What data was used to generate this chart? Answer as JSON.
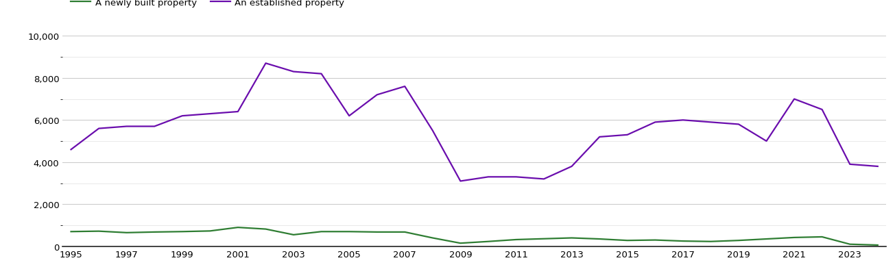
{
  "years": [
    1995,
    1996,
    1997,
    1998,
    1999,
    2000,
    2001,
    2002,
    2003,
    2004,
    2005,
    2006,
    2007,
    2008,
    2009,
    2010,
    2011,
    2012,
    2013,
    2014,
    2015,
    2016,
    2017,
    2018,
    2019,
    2020,
    2021,
    2022,
    2023,
    2024
  ],
  "new_homes": [
    700,
    720,
    650,
    680,
    700,
    730,
    900,
    820,
    550,
    700,
    700,
    680,
    680,
    400,
    150,
    230,
    320,
    360,
    400,
    350,
    280,
    300,
    250,
    230,
    280,
    350,
    420,
    450,
    100,
    60
  ],
  "established_homes": [
    4600,
    5600,
    5700,
    5700,
    6200,
    6300,
    6400,
    8700,
    8300,
    8200,
    6200,
    7200,
    7600,
    5500,
    3100,
    3300,
    3300,
    3200,
    3800,
    5200,
    5300,
    5900,
    6000,
    5900,
    5800,
    5000,
    7000,
    6500,
    3900,
    3800
  ],
  "new_homes_color": "#2e7d32",
  "established_homes_color": "#6a0dad",
  "legend_new": "A newly built property",
  "legend_established": "An established property",
  "ylim": [
    0,
    10000
  ],
  "yticks_major": [
    0,
    2000,
    4000,
    6000,
    8000,
    10000
  ],
  "yticks_minor": [
    1000,
    3000,
    5000,
    7000,
    9000
  ],
  "background_color": "#ffffff",
  "major_grid_color": "#cccccc",
  "minor_grid_color": "#e5e5e5",
  "linewidth": 1.6,
  "legend_fontsize": 9.5,
  "tick_fontsize": 9.5
}
